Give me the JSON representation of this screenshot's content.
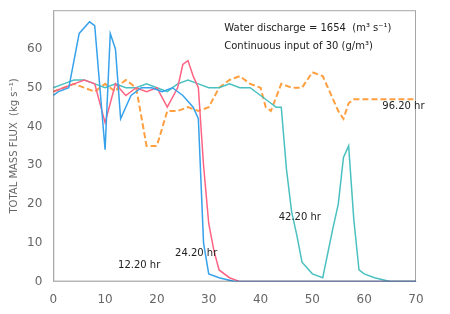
{
  "chart_data": {
    "type": "line",
    "ylabel": "TOTAL MASS FLUX  (kg s⁻¹)",
    "xlim": [
      0,
      70
    ],
    "ylim": [
      0,
      70
    ],
    "xticks": [
      0,
      10,
      20,
      30,
      40,
      50,
      60,
      70
    ],
    "yticks": [
      0,
      10,
      20,
      30,
      40,
      50,
      60
    ],
    "grid": false,
    "series": [
      {
        "name": "12.20 hr",
        "line_style": "solid",
        "marker": "none",
        "x": [
          0,
          1,
          3,
          5,
          7,
          8,
          9,
          10,
          11,
          12,
          13,
          15,
          17,
          19,
          21,
          23,
          25,
          27,
          28,
          29,
          30,
          32,
          35,
          40,
          45,
          50,
          55,
          60,
          65,
          70
        ],
        "values": [
          48,
          49,
          50,
          64,
          67,
          66,
          50,
          34,
          64,
          60,
          42,
          48,
          50,
          50,
          49,
          50,
          48,
          45,
          42,
          10,
          2,
          1,
          0,
          0,
          0,
          0,
          0,
          0,
          0,
          0
        ]
      },
      {
        "name": "24.20 hr",
        "line_style": "solid",
        "marker": "none",
        "x": [
          0,
          2,
          4,
          6,
          8,
          10,
          12,
          14,
          16,
          18,
          20,
          22,
          24,
          25,
          26,
          27,
          28,
          29,
          30,
          31,
          32,
          34,
          36,
          38,
          40,
          42,
          45,
          50,
          55,
          60,
          65,
          70
        ],
        "values": [
          49,
          50,
          51,
          52,
          51,
          41,
          51,
          48,
          50,
          49,
          50,
          45,
          50,
          56,
          57,
          53,
          50,
          30,
          15,
          8,
          3,
          1,
          0,
          0,
          0,
          0,
          0,
          0,
          0,
          0,
          0,
          0
        ]
      },
      {
        "name": "42.20 hr",
        "line_style": "solid",
        "marker": "none",
        "x": [
          0,
          2,
          4,
          6,
          8,
          10,
          12,
          14,
          16,
          18,
          20,
          22,
          24,
          26,
          28,
          30,
          32,
          34,
          36,
          38,
          40,
          42,
          43,
          44,
          45,
          46,
          47,
          48,
          50,
          52,
          54,
          55,
          56,
          57,
          58,
          59,
          60,
          62,
          65,
          68,
          70
        ],
        "values": [
          50,
          51,
          52,
          52,
          51,
          50,
          51,
          50,
          50,
          51,
          50,
          49,
          51,
          52,
          51,
          50,
          50,
          51,
          50,
          50,
          48,
          46,
          45,
          45,
          29,
          18,
          12,
          5,
          2,
          1,
          14,
          20,
          32,
          35,
          16,
          3,
          2,
          1,
          0,
          0,
          0
        ]
      },
      {
        "name": "96.20 hr",
        "line_style": "dashed",
        "marker": "none",
        "x": [
          0,
          2,
          4,
          6,
          8,
          10,
          11,
          12,
          13,
          14,
          16,
          18,
          20,
          22,
          24,
          26,
          28,
          30,
          32,
          34,
          36,
          38,
          40,
          41,
          42,
          44,
          46,
          48,
          50,
          52,
          54,
          55,
          56,
          57,
          58,
          60,
          62,
          64,
          66,
          68,
          70
        ],
        "values": [
          49,
          50,
          51,
          50,
          49,
          51,
          50,
          49,
          51,
          52,
          50,
          35,
          35,
          44,
          44,
          45,
          44,
          45,
          50,
          52,
          53,
          51,
          50,
          45,
          44,
          51,
          50,
          50,
          54,
          53,
          47,
          44,
          42,
          46,
          47,
          47,
          47,
          47,
          47,
          47,
          47
        ]
      }
    ],
    "annotations": [
      {
        "text": "12.20 hr",
        "x": 12.5,
        "y": 3.5
      },
      {
        "text": "24.20 hr",
        "x": 23.5,
        "y": 6.5
      },
      {
        "text": "42.20 hr",
        "x": 43.5,
        "y": 16.0
      },
      {
        "text": "96.20 hr",
        "x": 63.5,
        "y": 44.5
      },
      {
        "text": "Water discharge = 1654  (m³ s⁻¹)",
        "x": 33,
        "y": 66.5,
        "anchor": "top"
      },
      {
        "text": "Continuous input of 30 (g/m³)",
        "x": 33,
        "y": 62.0,
        "anchor": "top"
      }
    ]
  }
}
